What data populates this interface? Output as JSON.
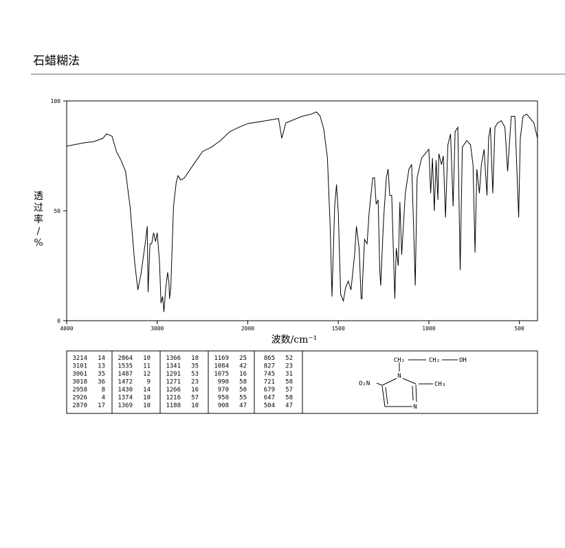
{
  "title": "石蜡糊法",
  "chart_data": {
    "type": "line",
    "x_label": "波数/cm⁻¹",
    "y_label": "透过率/%",
    "xlim": [
      4000,
      400
    ],
    "x_break": 2000,
    "xticks": [
      4000,
      3000,
      2000,
      1500,
      1000,
      500
    ],
    "ylim": [
      0,
      100
    ],
    "yticks": [
      0,
      50,
      100
    ],
    "series": [
      {
        "color": "#000000",
        "x": [
          4000,
          3800,
          3700,
          3600,
          3560,
          3500,
          3450,
          3400,
          3350,
          3300,
          3250,
          3214,
          3180,
          3130,
          3110,
          3101,
          3080,
          3061,
          3040,
          3018,
          3000,
          2975,
          2958,
          2940,
          2926,
          2905,
          2885,
          2870,
          2864,
          2850,
          2820,
          2790,
          2770,
          2740,
          2700,
          2650,
          2600,
          2550,
          2500,
          2400,
          2300,
          2200,
          2100,
          2000,
          1900,
          1830,
          1812,
          1790,
          1700,
          1650,
          1620,
          1600,
          1580,
          1560,
          1545,
          1535,
          1520,
          1510,
          1500,
          1487,
          1472,
          1460,
          1445,
          1430,
          1410,
          1400,
          1385,
          1374,
          1369,
          1366,
          1355,
          1341,
          1330,
          1310,
          1300,
          1291,
          1280,
          1271,
          1266,
          1250,
          1235,
          1225,
          1216,
          1205,
          1188,
          1180,
          1169,
          1160,
          1150,
          1130,
          1110,
          1095,
          1084,
          1075,
          1065,
          1040,
          1010,
          1000,
          990,
          980,
          970,
          960,
          950,
          945,
          930,
          920,
          908,
          895,
          880,
          866,
          855,
          840,
          827,
          815,
          790,
          770,
          756,
          745,
          735,
          721,
          710,
          695,
          679,
          670,
          660,
          647,
          635,
          620,
          600,
          580,
          565,
          545,
          525,
          504,
          495,
          480,
          460,
          440,
          420,
          400
        ],
        "values": [
          79.4,
          81,
          81.5,
          83,
          85,
          84,
          77,
          73,
          68,
          52,
          27,
          14,
          21,
          36,
          43,
          13,
          35,
          35,
          40,
          36,
          40,
          27,
          8,
          11,
          4,
          15,
          22,
          17,
          10,
          15,
          52,
          63,
          66,
          64,
          65,
          68,
          71,
          74,
          77,
          79,
          82,
          86,
          88,
          89.7,
          91,
          92,
          83,
          90,
          93,
          94,
          95,
          93,
          87,
          74,
          43,
          11,
          52,
          62,
          49,
          12,
          9,
          15,
          18,
          14,
          30,
          43,
          33,
          10,
          10,
          18,
          37,
          35,
          49,
          65,
          65,
          53,
          55,
          23,
          16,
          46,
          65,
          69,
          57,
          57,
          10,
          33,
          25,
          54,
          30,
          58,
          69,
          71,
          42,
          16,
          65,
          74,
          77,
          78,
          58,
          74,
          50,
          73,
          55,
          76,
          71,
          75,
          47,
          80,
          85,
          52,
          86,
          88,
          23,
          79,
          82,
          80,
          71,
          31,
          69,
          58,
          71,
          78,
          57,
          83,
          88,
          58,
          88,
          90,
          91,
          88,
          68,
          93,
          93,
          47,
          83,
          93,
          94,
          92,
          90,
          83
        ]
      }
    ]
  },
  "peak_table": [
    [
      3214,
      14
    ],
    [
      3101,
      13
    ],
    [
      3061,
      35
    ],
    [
      3018,
      36
    ],
    [
      2958,
      8
    ],
    [
      2926,
      4
    ],
    [
      2870,
      17
    ],
    [
      2864,
      10
    ],
    [
      1535,
      11
    ],
    [
      1487,
      12
    ],
    [
      1472,
      9
    ],
    [
      1430,
      14
    ],
    [
      1374,
      10
    ],
    [
      1369,
      10
    ],
    [
      1366,
      18
    ],
    [
      1341,
      35
    ],
    [
      1291,
      53
    ],
    [
      1271,
      23
    ],
    [
      1266,
      16
    ],
    [
      1216,
      57
    ],
    [
      1188,
      10
    ],
    [
      1169,
      25
    ],
    [
      1084,
      42
    ],
    [
      1075,
      16
    ],
    [
      990,
      58
    ],
    [
      970,
      50
    ],
    [
      950,
      55
    ],
    [
      908,
      47
    ],
    [
      865,
      52
    ],
    [
      827,
      23
    ],
    [
      745,
      31
    ],
    [
      721,
      58
    ],
    [
      679,
      57
    ],
    [
      647,
      58
    ],
    [
      504,
      47
    ]
  ],
  "structure": {
    "labels": [
      "CH₂",
      "CH₂",
      "OH",
      "O₂N",
      "CH₃",
      "N",
      "N"
    ]
  }
}
